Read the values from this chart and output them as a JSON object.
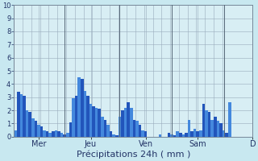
{
  "xlabel": "Précipitations 24h ( mm )",
  "ylim": [
    0,
    10
  ],
  "background_color": "#c8e8f0",
  "plot_bg_color": "#d8eef4",
  "bar_color_dark": "#2255bb",
  "bar_color_light": "#4488dd",
  "grid_color": "#99aabb",
  "vline_color": "#556677",
  "day_labels": [
    "Mer",
    "Jeu",
    "Ven",
    "Sam",
    "D"
  ],
  "ytick_fontsize": 6,
  "xtick_fontsize": 7,
  "xlabel_fontsize": 8,
  "values": [
    0.5,
    3.4,
    3.2,
    3.1,
    2.0,
    1.9,
    1.4,
    1.2,
    0.9,
    0.8,
    0.5,
    0.4,
    0.3,
    0.4,
    0.5,
    0.4,
    0.3,
    0.2,
    0.3,
    1.1,
    2.9,
    3.1,
    4.5,
    4.4,
    3.5,
    3.1,
    2.5,
    2.3,
    2.2,
    2.1,
    1.5,
    1.3,
    0.9,
    0.4,
    0.2,
    0.1,
    1.5,
    2.0,
    2.2,
    2.6,
    2.2,
    1.3,
    1.2,
    0.9,
    0.5,
    0.4,
    0.0,
    0.0,
    0.0,
    0.0,
    0.2,
    0.0,
    0.0,
    0.3,
    0.2,
    0.1,
    0.4,
    0.3,
    0.2,
    0.3,
    1.3,
    0.4,
    0.6,
    0.4,
    0.5,
    2.5,
    2.0,
    1.9,
    1.3,
    1.5,
    1.2,
    1.0,
    0.5,
    0.3,
    2.6
  ],
  "vline_positions": [
    17,
    36,
    54,
    72
  ],
  "day_x_positions": [
    8,
    26,
    45,
    63,
    82
  ],
  "yticks": [
    0,
    1,
    2,
    3,
    4,
    5,
    6,
    7,
    8,
    9,
    10
  ]
}
